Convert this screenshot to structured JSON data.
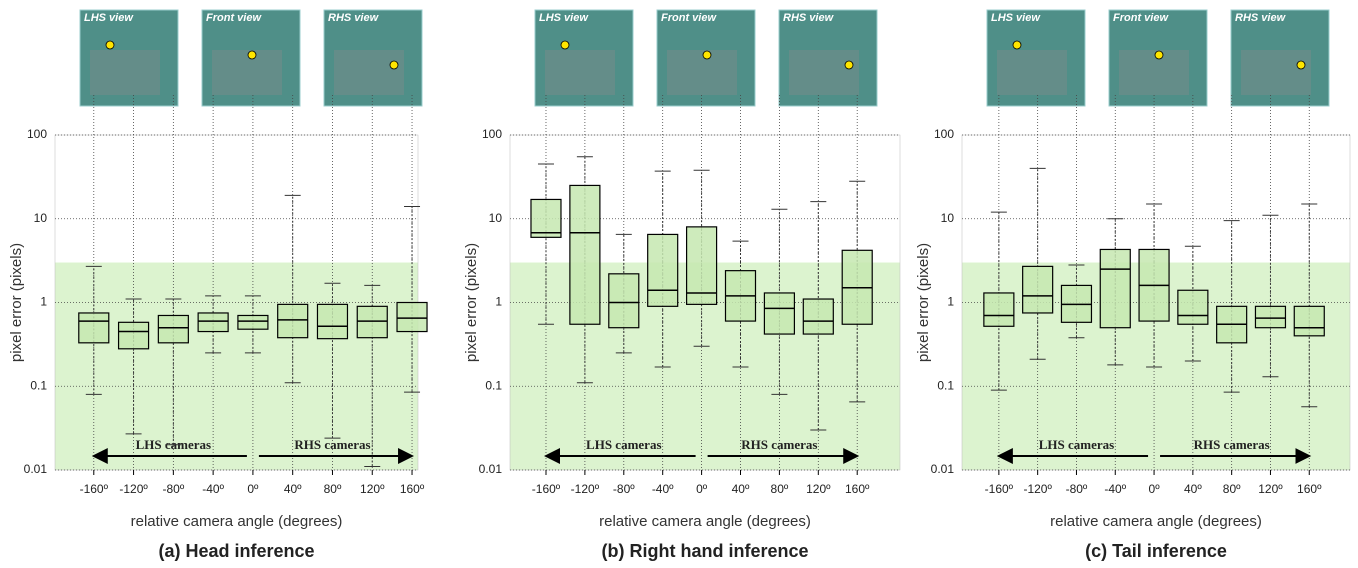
{
  "chart_data": [
    {
      "type": "box",
      "title": "(a) Head inference",
      "xlabel": "relative camera angle (degrees)",
      "ylabel": "pixel error (pixels)",
      "views": [
        "LHS view",
        "Front view",
        "RHS view"
      ],
      "annotations": [
        "LHS cameras",
        "RHS cameras"
      ],
      "log_y": true,
      "ylim": [
        0.01,
        100
      ],
      "yticks": [
        0.01,
        0.1,
        1,
        10,
        100
      ],
      "shade_below": 3,
      "shade_color": "#dcf3cf",
      "xlim": [
        -199,
        166
      ],
      "xticks": [
        {
          "value": -160,
          "label": "-160º"
        },
        {
          "value": -120,
          "label": "-120º"
        },
        {
          "value": -80,
          "label": "-80º"
        },
        {
          "value": -40,
          "label": "-40º"
        },
        {
          "value": 0,
          "label": "0º"
        },
        {
          "value": 40,
          "label": "40º"
        },
        {
          "value": 80,
          "label": "80º"
        },
        {
          "value": 120,
          "label": "120º"
        },
        {
          "value": 160,
          "label": "160º"
        }
      ],
      "color": "#c5e8b0",
      "x": [
        -160,
        -120,
        -80,
        -40,
        0,
        40,
        80,
        120,
        160
      ],
      "boxes": [
        {
          "low": 0.08,
          "q1": 0.33,
          "median": 0.6,
          "q3": 0.75,
          "high": 2.7
        },
        {
          "low": 0.027,
          "q1": 0.28,
          "median": 0.45,
          "q3": 0.58,
          "high": 1.1
        },
        {
          "low": 0.02,
          "q1": 0.33,
          "median": 0.5,
          "q3": 0.7,
          "high": 1.1
        },
        {
          "low": 0.25,
          "q1": 0.45,
          "median": 0.6,
          "q3": 0.75,
          "high": 1.2
        },
        {
          "low": 0.25,
          "q1": 0.48,
          "median": 0.6,
          "q3": 0.7,
          "high": 1.2
        },
        {
          "low": 0.11,
          "q1": 0.38,
          "median": 0.62,
          "q3": 0.95,
          "high": 19
        },
        {
          "low": 0.024,
          "q1": 0.37,
          "median": 0.52,
          "q3": 0.95,
          "high": 1.7
        },
        {
          "low": 0.011,
          "q1": 0.38,
          "median": 0.6,
          "q3": 0.9,
          "high": 1.6
        },
        {
          "low": 0.085,
          "q1": 0.45,
          "median": 0.65,
          "q3": 1.0,
          "high": 14
        }
      ]
    },
    {
      "type": "box",
      "title": "(b) Right hand inference",
      "xlabel": "relative camera angle (degrees)",
      "ylabel": "pixel error (pixels)",
      "views": [
        "LHS view",
        "Front view",
        "RHS view"
      ],
      "annotations": [
        "LHS cameras",
        "RHS cameras"
      ],
      "log_y": true,
      "ylim": [
        0.01,
        100
      ],
      "yticks": [
        0.01,
        0.1,
        1,
        10,
        100
      ],
      "shade_below": 3,
      "shade_color": "#dcf3cf",
      "xlim": [
        -197,
        204
      ],
      "xticks": [
        {
          "value": -160,
          "label": "-160º"
        },
        {
          "value": -120,
          "label": "-120º"
        },
        {
          "value": -80,
          "label": "-80º"
        },
        {
          "value": -40,
          "label": "-40º"
        },
        {
          "value": 0,
          "label": "0º"
        },
        {
          "value": 40,
          "label": "40º"
        },
        {
          "value": 80,
          "label": "80º"
        },
        {
          "value": 120,
          "label": "120º"
        },
        {
          "value": 160,
          "label": "160º"
        }
      ],
      "color": "#c5e8b0",
      "x": [
        -160,
        -120,
        -80,
        -40,
        0,
        40,
        80,
        120,
        160
      ],
      "boxes": [
        {
          "low": 0.55,
          "q1": 6.0,
          "median": 6.8,
          "q3": 17,
          "high": 45
        },
        {
          "low": 0.11,
          "q1": 0.55,
          "median": 6.8,
          "q3": 25,
          "high": 55
        },
        {
          "low": 0.25,
          "q1": 0.5,
          "median": 1.0,
          "q3": 2.2,
          "high": 6.5
        },
        {
          "low": 0.17,
          "q1": 0.9,
          "median": 1.4,
          "q3": 6.5,
          "high": 37
        },
        {
          "low": 0.3,
          "q1": 0.95,
          "median": 1.3,
          "q3": 8,
          "high": 38
        },
        {
          "low": 0.17,
          "q1": 0.6,
          "median": 1.2,
          "q3": 2.4,
          "high": 5.4
        },
        {
          "low": 0.08,
          "q1": 0.42,
          "median": 0.85,
          "q3": 1.3,
          "high": 13
        },
        {
          "low": 0.03,
          "q1": 0.42,
          "median": 0.6,
          "q3": 1.1,
          "high": 16
        },
        {
          "low": 0.065,
          "q1": 0.55,
          "median": 1.5,
          "q3": 4.2,
          "high": 28
        }
      ]
    },
    {
      "type": "box",
      "title": "(c) Tail inference",
      "xlabel": "relative camera angle (degrees)",
      "ylabel": "pixel error (pixels)",
      "views": [
        "LHS view",
        "Front view",
        "RHS view"
      ],
      "annotations": [
        "LHS cameras",
        "RHS cameras"
      ],
      "log_y": true,
      "ylim": [
        0.01,
        100
      ],
      "yticks": [
        0.01,
        0.1,
        1,
        10,
        100
      ],
      "shade_below": 3,
      "shade_color": "#dcf3cf",
      "xlim": [
        -198,
        202
      ],
      "xticks": [
        {
          "value": -160,
          "label": "-160º"
        },
        {
          "value": -120,
          "label": "-120º"
        },
        {
          "value": -80,
          "label": "-80º"
        },
        {
          "value": -40,
          "label": "-40º"
        },
        {
          "value": 0,
          "label": "0º"
        },
        {
          "value": 40,
          "label": "40º"
        },
        {
          "value": 80,
          "label": "80º"
        },
        {
          "value": 120,
          "label": "120º"
        },
        {
          "value": 160,
          "label": "160º"
        }
      ],
      "color": "#c5e8b0",
      "x": [
        -160,
        -120,
        -80,
        -40,
        0,
        40,
        80,
        120,
        160
      ],
      "boxes": [
        {
          "low": 0.09,
          "q1": 0.52,
          "median": 0.7,
          "q3": 1.3,
          "high": 12
        },
        {
          "low": 0.21,
          "q1": 0.75,
          "median": 1.2,
          "q3": 2.7,
          "high": 40
        },
        {
          "low": 0.38,
          "q1": 0.58,
          "median": 0.95,
          "q3": 1.6,
          "high": 2.8
        },
        {
          "low": 0.18,
          "q1": 0.5,
          "median": 2.5,
          "q3": 4.3,
          "high": 10
        },
        {
          "low": 0.17,
          "q1": 0.6,
          "median": 1.6,
          "q3": 4.3,
          "high": 15
        },
        {
          "low": 0.2,
          "q1": 0.55,
          "median": 0.7,
          "q3": 1.4,
          "high": 4.7
        },
        {
          "low": 0.085,
          "q1": 0.33,
          "median": 0.55,
          "q3": 0.9,
          "high": 9.5
        },
        {
          "low": 0.13,
          "q1": 0.5,
          "median": 0.65,
          "q3": 0.9,
          "high": 11
        },
        {
          "low": 0.057,
          "q1": 0.4,
          "median": 0.5,
          "q3": 0.9,
          "high": 15
        }
      ]
    }
  ]
}
